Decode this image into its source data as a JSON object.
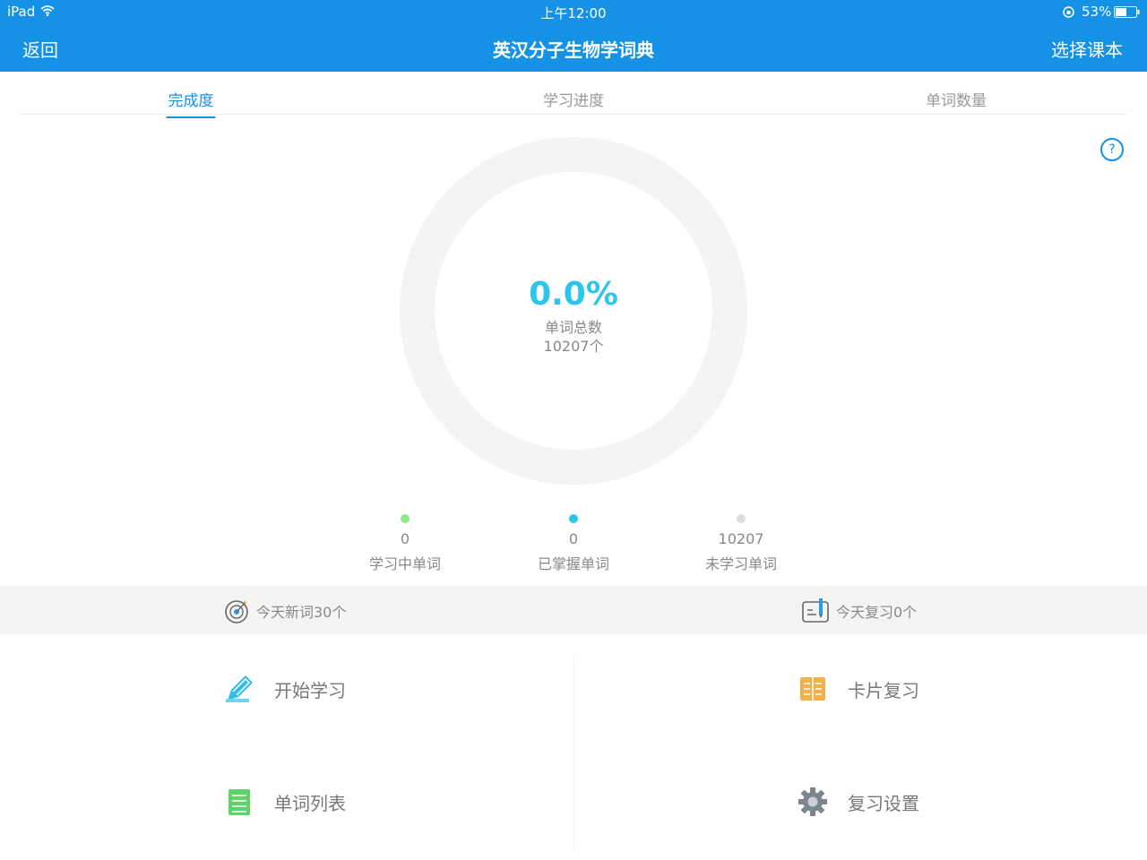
{
  "status_bar": {
    "device": "iPad",
    "time": "上午12:00",
    "battery": "53%"
  },
  "nav": {
    "back": "返回",
    "title": "英汉分子生物学词典",
    "select_book": "选择课本",
    "color": "#1592e5"
  },
  "tabs": [
    {
      "label": "完成度",
      "active": true
    },
    {
      "label": "学习进度"
    },
    {
      "label": "单词数量"
    }
  ],
  "help": "?",
  "progress": {
    "percent": "0.0%",
    "progress_fraction": 0,
    "label": "单词总数",
    "total": "10207个",
    "color": "#2cc6ec"
  },
  "legend": [
    {
      "count": "0",
      "label": "学习中单词",
      "color": "#8ce98c"
    },
    {
      "count": "0",
      "label": "已掌握单词",
      "color": "#2cc6ec"
    },
    {
      "count": "10207",
      "label": "未学习单词",
      "color": "#dddddd"
    }
  ],
  "today": {
    "new": "今天新词30个",
    "review": "今天复习0个"
  },
  "actions": [
    {
      "label": "开始学习",
      "icon": "pencil-icon"
    },
    {
      "label": "卡片复习",
      "icon": "card-book-icon"
    },
    {
      "label": "单词列表",
      "icon": "list-icon"
    },
    {
      "label": "复习设置",
      "icon": "gear-icon"
    }
  ]
}
